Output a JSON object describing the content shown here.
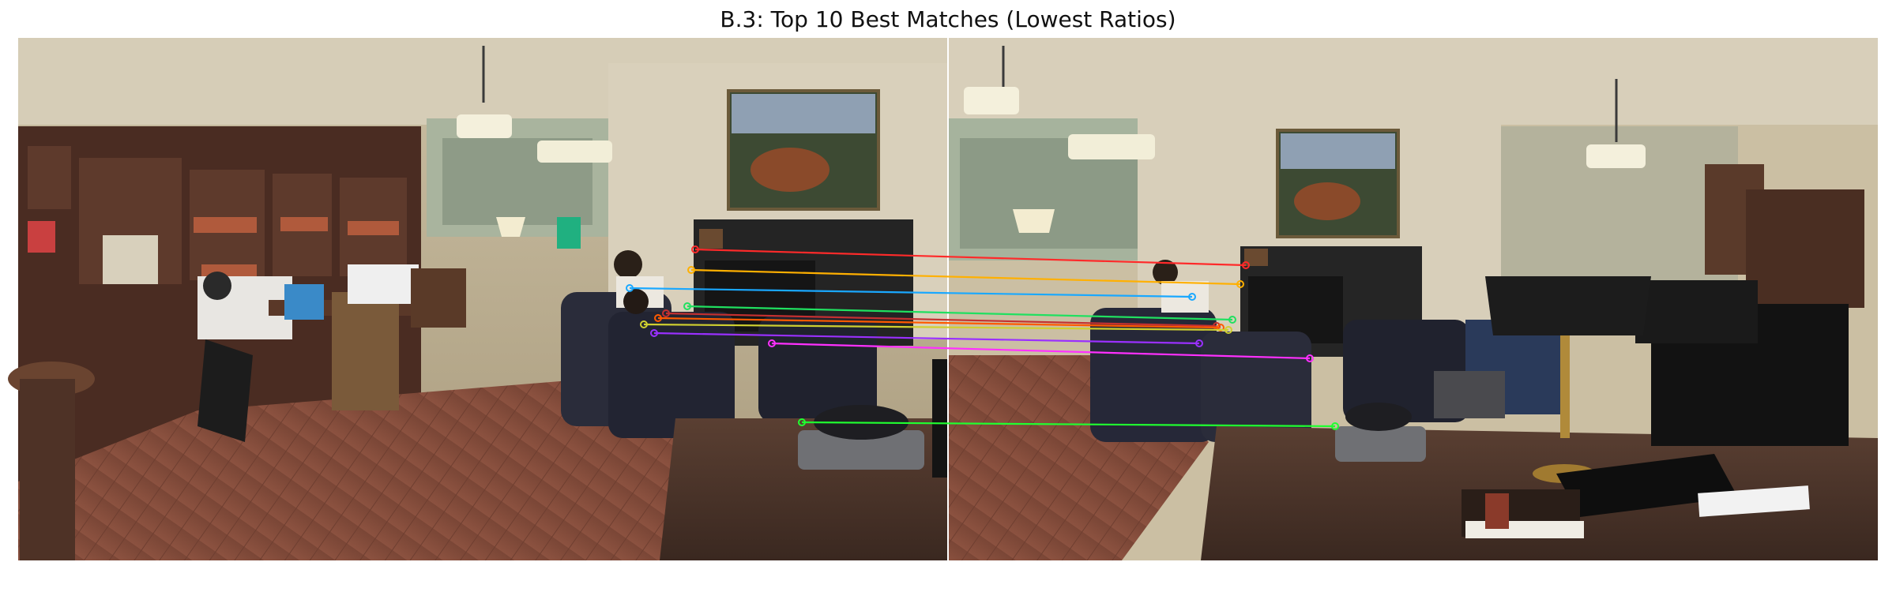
{
  "title": "B.3: Top 10 Best Matches (Lowest Ratios)",
  "images": [
    "left-photo",
    "right-photo"
  ],
  "match_count": 10,
  "match_colors": [
    "#ff2a2a",
    "#ffb000",
    "#1aa8ff",
    "#20e060",
    "#c43030",
    "#ff5a00",
    "#d0d030",
    "#9a30ff",
    "#ff30ff",
    "#20ff30"
  ]
}
